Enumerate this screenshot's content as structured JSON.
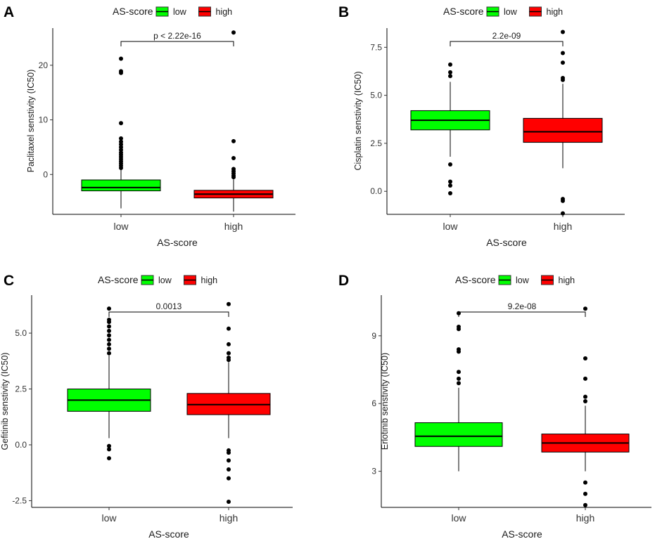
{
  "chart_data": [
    {
      "panel": "A",
      "type": "box",
      "title": "",
      "legend": {
        "title": "AS-score",
        "entries": [
          {
            "label": "low",
            "color": "#00ff00"
          },
          {
            "label": "high",
            "color": "#ff0000"
          }
        ]
      },
      "xlabel": "AS-score",
      "ylabel": "Paclitaxel senstivity (IC50)",
      "categories": [
        "low",
        "high"
      ],
      "ylim": [
        -7.3,
        26.8
      ],
      "yticks": [
        0,
        10,
        20
      ],
      "pvalue": "p < 2.22e-16",
      "groups": [
        {
          "name": "low",
          "color": "#00ff00",
          "q1": -3.0,
          "median": -2.4,
          "q3": -1.0,
          "lower": -6.2,
          "upper": 0.9,
          "outliers": [
            1.2,
            1.6,
            2.0,
            2.4,
            2.8,
            3.2,
            3.6,
            4.0,
            4.5,
            5.0,
            5.5,
            6.0,
            6.6,
            9.4,
            18.6,
            18.9,
            21.2
          ]
        },
        {
          "name": "high",
          "color": "#ff0000",
          "q1": -4.3,
          "median": -3.6,
          "q3": -2.9,
          "lower": -6.8,
          "upper": -0.9,
          "outliers": [
            -0.5,
            -0.2,
            0.2,
            0.6,
            1.0,
            3.0,
            6.1,
            26.0
          ]
        }
      ]
    },
    {
      "panel": "B",
      "type": "box",
      "title": "",
      "legend": {
        "title": "AS-score",
        "entries": [
          {
            "label": "low",
            "color": "#00ff00"
          },
          {
            "label": "high",
            "color": "#ff0000"
          }
        ]
      },
      "xlabel": "AS-score",
      "ylabel": "Cisplatin senstivity (IC50)",
      "categories": [
        "low",
        "high"
      ],
      "ylim": [
        -1.2,
        8.5
      ],
      "yticks": [
        0.0,
        2.5,
        5.0,
        7.5
      ],
      "yticklabels": [
        "0.0",
        "2.5",
        "5.0",
        "7.5"
      ],
      "pvalue": "2.2e-09",
      "groups": [
        {
          "name": "low",
          "color": "#00ff00",
          "q1": 3.2,
          "median": 3.7,
          "q3": 4.2,
          "lower": 1.8,
          "upper": 5.7,
          "outliers": [
            -0.1,
            0.3,
            0.5,
            1.4,
            6.0,
            6.2,
            6.6
          ]
        },
        {
          "name": "high",
          "color": "#ff0000",
          "q1": 2.55,
          "median": 3.1,
          "q3": 3.8,
          "lower": 1.2,
          "upper": 5.6,
          "outliers": [
            -1.15,
            -0.5,
            -0.4,
            5.8,
            5.9,
            6.7,
            7.2,
            8.3
          ]
        }
      ]
    },
    {
      "panel": "C",
      "type": "box",
      "title": "",
      "legend": {
        "title": "AS-score",
        "entries": [
          {
            "label": "low",
            "color": "#00ff00"
          },
          {
            "label": "high",
            "color": "#ff0000"
          }
        ]
      },
      "xlabel": "AS-score",
      "ylabel": "Gefitinib senstivity (IC50)",
      "categories": [
        "low",
        "high"
      ],
      "ylim": [
        -2.8,
        6.7
      ],
      "yticks": [
        -2.5,
        0.0,
        2.5,
        5.0
      ],
      "yticklabels": [
        "-2.5",
        "0.0",
        "2.5",
        "5.0"
      ],
      "pvalue": "0.0013",
      "groups": [
        {
          "name": "low",
          "color": "#00ff00",
          "q1": 1.5,
          "median": 2.0,
          "q3": 2.5,
          "lower": 0.3,
          "upper": 4.0,
          "outliers": [
            -0.6,
            -0.2,
            -0.05,
            4.1,
            4.3,
            4.5,
            4.7,
            4.9,
            5.1,
            5.3,
            5.5,
            5.6,
            6.1
          ]
        },
        {
          "name": "high",
          "color": "#ff0000",
          "q1": 1.35,
          "median": 1.8,
          "q3": 2.3,
          "lower": 0.3,
          "upper": 3.7,
          "outliers": [
            -2.55,
            -1.5,
            -1.1,
            -0.7,
            -0.35,
            -0.25,
            3.8,
            3.9,
            4.1,
            4.5,
            5.2,
            6.3
          ]
        }
      ]
    },
    {
      "panel": "D",
      "type": "box",
      "title": "",
      "legend": {
        "title": "AS-score",
        "entries": [
          {
            "label": "low",
            "color": "#00ff00"
          },
          {
            "label": "high",
            "color": "#ff0000"
          }
        ]
      },
      "xlabel": "AS-score",
      "ylabel": "Erlotinib senstivity (IC50)",
      "categories": [
        "low",
        "high"
      ],
      "ylim": [
        1.4,
        10.8
      ],
      "yticks": [
        3,
        6,
        9
      ],
      "pvalue": "9.2e-08",
      "groups": [
        {
          "name": "low",
          "color": "#00ff00",
          "q1": 4.1,
          "median": 4.55,
          "q3": 5.15,
          "lower": 3.0,
          "upper": 6.7,
          "outliers": [
            6.9,
            7.1,
            7.4,
            8.3,
            8.4,
            9.3,
            9.4,
            10.0
          ]
        },
        {
          "name": "high",
          "color": "#ff0000",
          "q1": 3.85,
          "median": 4.25,
          "q3": 4.65,
          "lower": 3.0,
          "upper": 5.9,
          "outliers": [
            1.5,
            2.0,
            2.5,
            6.1,
            6.3,
            7.1,
            8.0,
            10.2
          ]
        }
      ]
    }
  ]
}
